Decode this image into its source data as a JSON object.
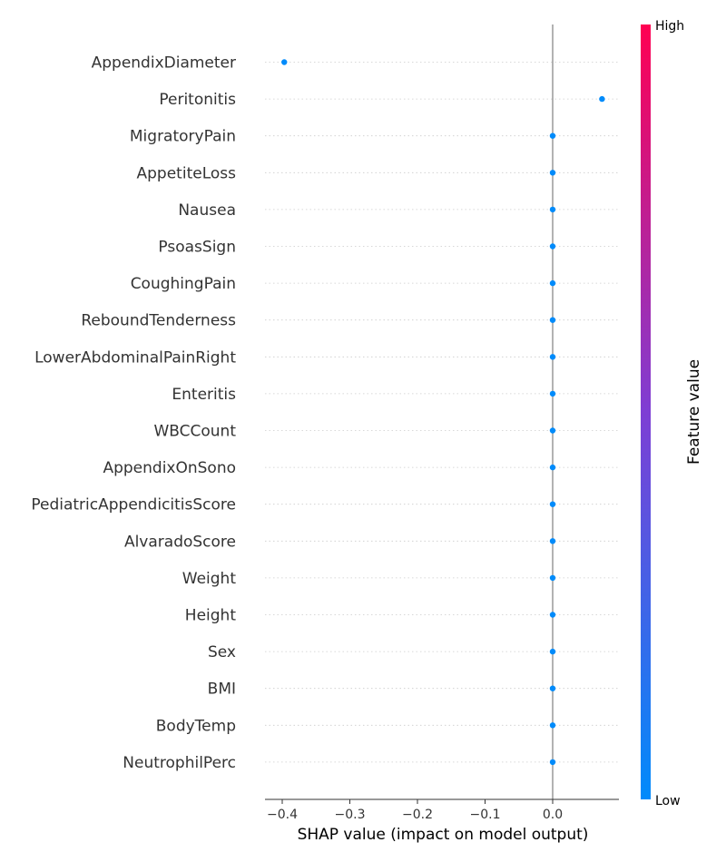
{
  "chart_data": {
    "type": "scatter",
    "title": "",
    "xlabel": "SHAP value (impact on model output)",
    "ylabel": "",
    "xlim": [
      -0.42,
      0.095
    ],
    "xticks": [
      -0.4,
      -0.3,
      -0.2,
      -0.1,
      0.0
    ],
    "xtick_labels": [
      "−0.4",
      "−0.3",
      "−0.2",
      "−0.1",
      "0.0"
    ],
    "grid": false,
    "features": [
      {
        "name": "AppendixDiameter",
        "shap": -0.397
      },
      {
        "name": "Peritonitis",
        "shap": 0.073
      },
      {
        "name": "MigratoryPain",
        "shap": 0.0
      },
      {
        "name": "AppetiteLoss",
        "shap": 0.0
      },
      {
        "name": "Nausea",
        "shap": 0.0
      },
      {
        "name": "PsoasSign",
        "shap": 0.0
      },
      {
        "name": "CoughingPain",
        "shap": 0.0
      },
      {
        "name": "ReboundTenderness",
        "shap": 0.0
      },
      {
        "name": "LowerAbdominalPainRight",
        "shap": 0.0
      },
      {
        "name": "Enteritis",
        "shap": 0.0
      },
      {
        "name": "WBCCount",
        "shap": 0.0
      },
      {
        "name": "AppendixOnSono",
        "shap": 0.0
      },
      {
        "name": "PediatricAppendicitisScore",
        "shap": 0.0
      },
      {
        "name": "AlvaradoScore",
        "shap": 0.0
      },
      {
        "name": "Weight",
        "shap": 0.0
      },
      {
        "name": "Height",
        "shap": 0.0
      },
      {
        "name": "Sex",
        "shap": 0.0
      },
      {
        "name": "BMI",
        "shap": 0.0
      },
      {
        "name": "BodyTemp",
        "shap": 0.0
      },
      {
        "name": "NeutrophilPerc",
        "shap": 0.0
      }
    ],
    "point_color": "#008bfb",
    "colorbar": {
      "label": "Feature value",
      "high_label": "High",
      "low_label": "Low",
      "low_color": "#008bfb",
      "mid_color": "#7e3ed4",
      "high_color": "#ff0052"
    }
  }
}
